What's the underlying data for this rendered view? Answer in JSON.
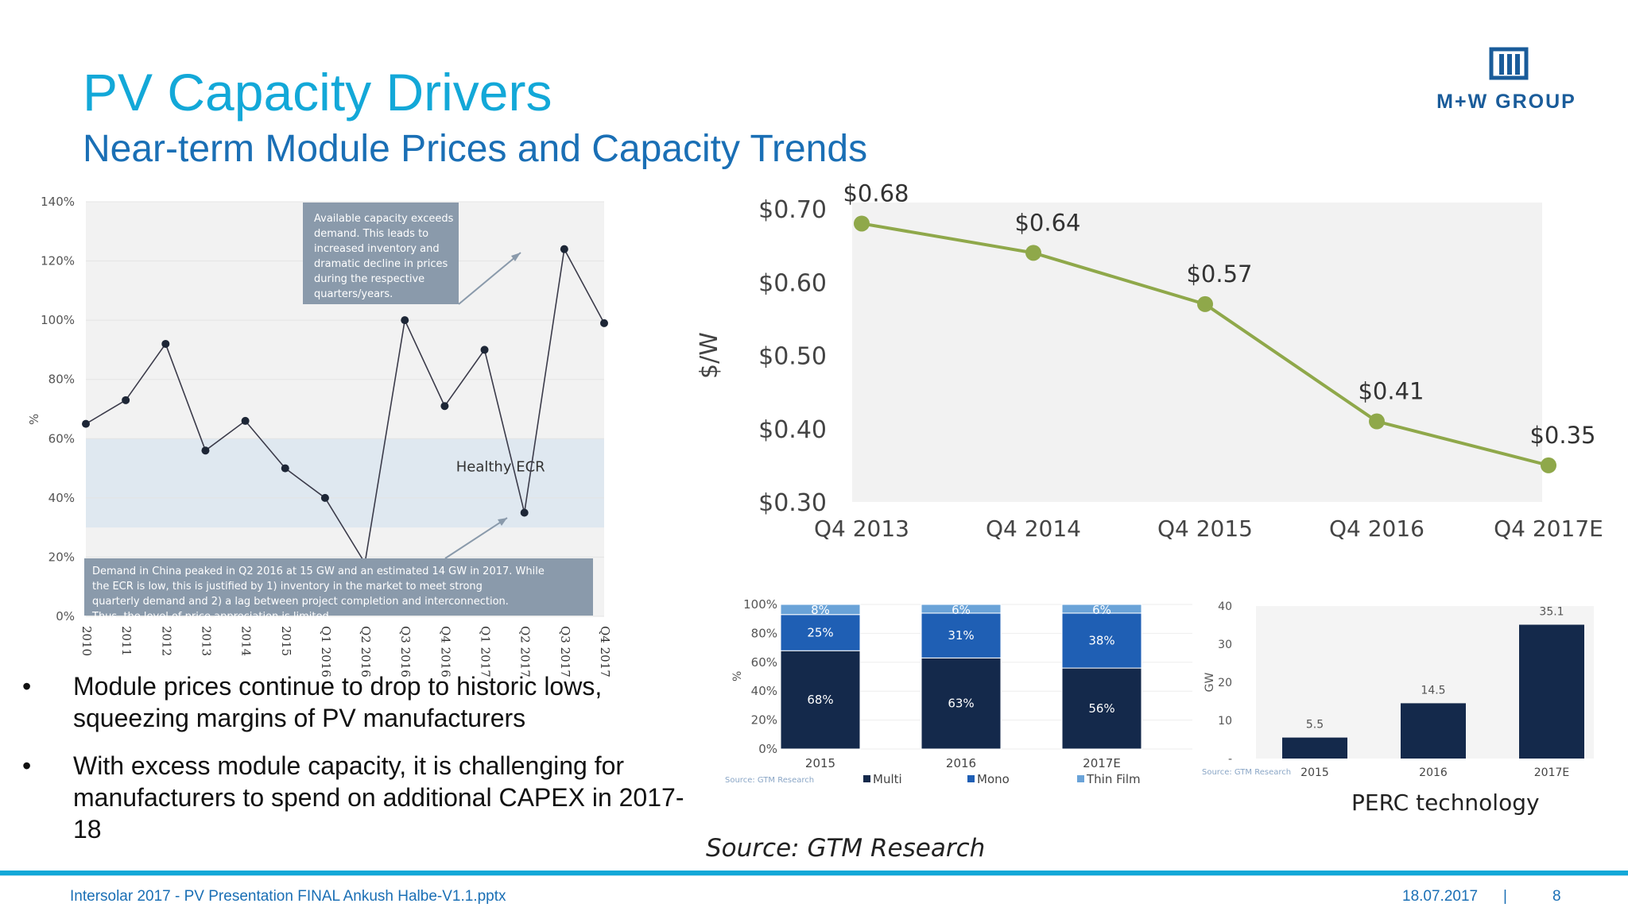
{
  "slide": {
    "title": "PV Capacity Drivers",
    "subtitle": "Near-term Module Prices and Capacity Trends",
    "logo_text": "M+W GROUP",
    "bullets": [
      "Module prices continue to drop to historic lows, squeezing margins of PV manufacturers",
      "With excess module capacity, it is challenging for manufacturers to spend on additional CAPEX in 2017-18"
    ],
    "source": "Source: GTM Research",
    "perc_caption": "PERC technology",
    "footer": {
      "file": "Intersolar 2017 - PV Presentation FINAL Ankush Halbe-V1.1.pptx",
      "date": "18.07.2017",
      "separator": "|",
      "page": "8"
    },
    "colors": {
      "title": "#13a8d8",
      "subtitle": "#1a6fb5",
      "price_line": "#8fa84a",
      "multi": "#14294b",
      "mono": "#1f5fb4",
      "thin_film": "#6aa3d8"
    }
  },
  "chart_data": [
    {
      "type": "line",
      "ylabel": "%",
      "ylim": [
        0,
        140
      ],
      "yticks": [
        "0%",
        "20%",
        "40%",
        "60%",
        "80%",
        "100%",
        "120%",
        "140%"
      ],
      "categories": [
        "2010",
        "2011",
        "2012",
        "2013",
        "2014",
        "2015",
        "Q1 2016",
        "Q2 2016",
        "Q3 2016",
        "Q4 2016",
        "Q1 2017",
        "Q2 2017",
        "Q3 2017",
        "Q4 2017"
      ],
      "values": [
        65,
        73,
        92,
        56,
        66,
        50,
        40,
        18,
        100,
        71,
        90,
        35,
        124,
        99
      ],
      "band": {
        "label": "Healthy ECR",
        "range": [
          30,
          60
        ]
      },
      "annotations": [
        "Available capacity exceeds demand. This leads to increased inventory and dramatic decline in prices during the respective quarters/years.",
        "Demand in China peaked in Q2 2016 at 15 GW and an estimated 14 GW in 2017. While the ECR is low, this is justified by 1) inventory in the market to meet strong quarterly demand and 2) a lag between project completion and interconnection. Thus, the level of price appreciation is limited"
      ]
    },
    {
      "type": "line",
      "ylabel": "$/W",
      "ylim": [
        0.3,
        0.7
      ],
      "yticks": [
        "$0.30",
        "$0.40",
        "$0.50",
        "$0.60",
        "$0.70"
      ],
      "categories": [
        "Q4 2013",
        "Q4 2014",
        "Q4 2015",
        "Q4 2016",
        "Q4 2017E"
      ],
      "values": [
        0.68,
        0.64,
        0.57,
        0.41,
        0.35
      ],
      "labels": [
        "$0.68",
        "$0.64",
        "$0.57",
        "$0.41",
        "$0.35"
      ]
    },
    {
      "type": "bar",
      "stacked": true,
      "ylabel": "%",
      "ylim": [
        0,
        100
      ],
      "yticks": [
        "0%",
        "20%",
        "40%",
        "60%",
        "80%",
        "100%"
      ],
      "categories": [
        "2015",
        "2016",
        "2017E"
      ],
      "series": [
        {
          "name": "Multi",
          "values": [
            68,
            63,
            56
          ],
          "labels": [
            "68%",
            "63%",
            "56%"
          ]
        },
        {
          "name": "Mono",
          "values": [
            25,
            31,
            38
          ],
          "labels": [
            "25%",
            "31%",
            "38%"
          ]
        },
        {
          "name": "Thin Film",
          "values": [
            8,
            6,
            6
          ],
          "labels": [
            "8%",
            "6%",
            "6%"
          ]
        }
      ],
      "source": "Source: GTM Research"
    },
    {
      "type": "bar",
      "ylabel": "GW",
      "ylim": [
        0,
        40
      ],
      "yticks": [
        "-",
        "10",
        "20",
        "30",
        "40"
      ],
      "categories": [
        "2015",
        "2016",
        "2017E"
      ],
      "values": [
        5.5,
        14.5,
        35.1
      ],
      "labels": [
        "5.5",
        "14.5",
        "35.1"
      ],
      "source": "Source: GTM Research"
    }
  ]
}
